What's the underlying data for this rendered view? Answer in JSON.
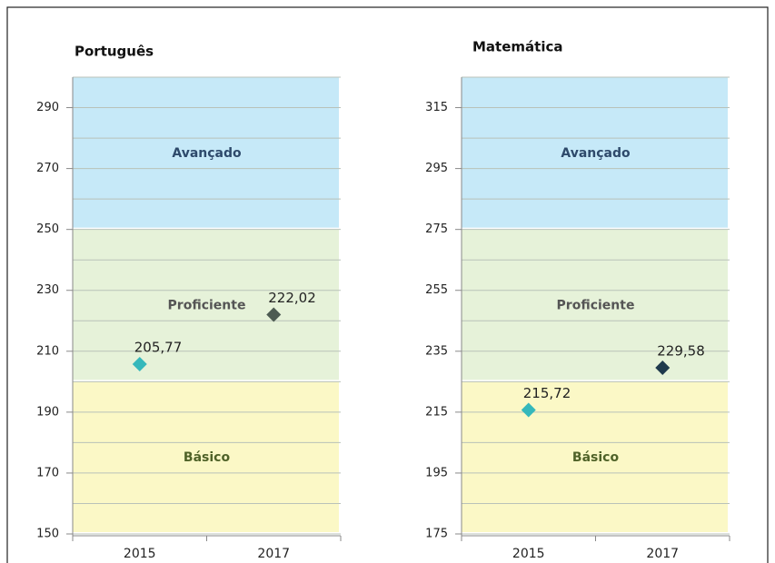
{
  "chart_data": [
    {
      "type": "scatter",
      "title": "Português",
      "categories": [
        "2015",
        "2017"
      ],
      "values": [
        205.77,
        222.02
      ],
      "value_labels": [
        "205,77",
        "222,02"
      ],
      "colors": [
        "#35b8bb",
        "#4d5b52"
      ],
      "bands": [
        {
          "name": "Avançado",
          "range": [
            250,
            300
          ],
          "color": "#c6e9f8",
          "text_color": "#2e4a6b"
        },
        {
          "name": "Proficiente",
          "range": [
            200,
            250
          ],
          "color": "#e6f2d9",
          "text_color": "#555555"
        },
        {
          "name": "Básico",
          "range": [
            150,
            200
          ],
          "color": "#fbf8c6",
          "text_color": "#4f6228"
        }
      ],
      "ylim": [
        150,
        300
      ],
      "yticks": [
        150,
        170,
        190,
        210,
        230,
        250,
        270,
        290
      ],
      "minor_yticks": [
        160,
        180,
        200,
        220,
        240,
        260,
        280,
        300
      ]
    },
    {
      "type": "scatter",
      "title": "Matemática",
      "categories": [
        "2015",
        "2017"
      ],
      "values": [
        215.72,
        229.58
      ],
      "value_labels": [
        "215,72",
        "229,58"
      ],
      "colors": [
        "#35b8bb",
        "#1f3a4d"
      ],
      "bands": [
        {
          "name": "Avançado",
          "range": [
            275,
            325
          ],
          "color": "#c6e9f8",
          "text_color": "#2e4a6b"
        },
        {
          "name": "Proficiente",
          "range": [
            225,
            275
          ],
          "color": "#e6f2d9",
          "text_color": "#555555"
        },
        {
          "name": "Básico",
          "range": [
            175,
            225
          ],
          "color": "#fbf8c6",
          "text_color": "#4f6228"
        }
      ],
      "ylim": [
        175,
        325
      ],
      "yticks": [
        175,
        195,
        215,
        235,
        255,
        275,
        295,
        315
      ],
      "minor_yticks": [
        185,
        205,
        225,
        245,
        265,
        285,
        305,
        325
      ]
    }
  ]
}
